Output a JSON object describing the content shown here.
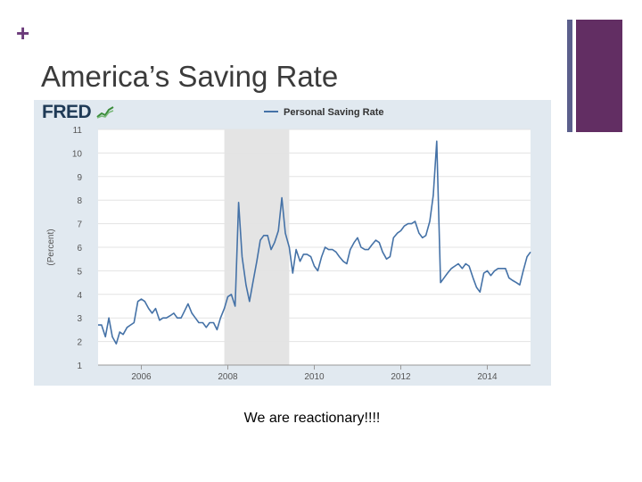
{
  "slide": {
    "plus_sign": "+",
    "title": "America’s Saving Rate",
    "caption": "We are reactionary!!!!",
    "accent_colors": {
      "thin_bar": "#5b5f8c",
      "thick_bar": "#622e63"
    }
  },
  "logo": {
    "text": "FRED"
  },
  "chart_data": {
    "type": "line",
    "title": "",
    "legend": "Personal Saving Rate",
    "legend_position": "top",
    "xlabel": "",
    "ylabel": "(Percent)",
    "ylim": [
      1,
      11
    ],
    "xlim": [
      2005.0,
      2015.0
    ],
    "yticks": [
      1,
      2,
      3,
      4,
      5,
      6,
      7,
      8,
      9,
      10,
      11
    ],
    "xticks": [
      2006,
      2008,
      2010,
      2012,
      2014
    ],
    "grid": true,
    "line_color": "#4572a7",
    "recession": {
      "start": 2007.92,
      "end": 2009.42,
      "color": "#e4e4e4"
    },
    "series": [
      {
        "name": "Personal Saving Rate",
        "x": [
          2005.0,
          2005.08,
          2005.17,
          2005.25,
          2005.33,
          2005.42,
          2005.5,
          2005.58,
          2005.67,
          2005.75,
          2005.83,
          2005.92,
          2006.0,
          2006.08,
          2006.17,
          2006.25,
          2006.33,
          2006.42,
          2006.5,
          2006.58,
          2006.67,
          2006.75,
          2006.83,
          2006.92,
          2007.0,
          2007.08,
          2007.17,
          2007.25,
          2007.33,
          2007.42,
          2007.5,
          2007.58,
          2007.67,
          2007.75,
          2007.83,
          2007.92,
          2008.0,
          2008.08,
          2008.17,
          2008.25,
          2008.33,
          2008.42,
          2008.5,
          2008.58,
          2008.67,
          2008.75,
          2008.83,
          2008.92,
          2009.0,
          2009.08,
          2009.17,
          2009.25,
          2009.33,
          2009.42,
          2009.5,
          2009.58,
          2009.67,
          2009.75,
          2009.83,
          2009.92,
          2010.0,
          2010.08,
          2010.17,
          2010.25,
          2010.33,
          2010.42,
          2010.5,
          2010.58,
          2010.67,
          2010.75,
          2010.83,
          2010.92,
          2011.0,
          2011.08,
          2011.17,
          2011.25,
          2011.33,
          2011.42,
          2011.5,
          2011.58,
          2011.67,
          2011.75,
          2011.83,
          2011.92,
          2012.0,
          2012.08,
          2012.17,
          2012.25,
          2012.33,
          2012.42,
          2012.5,
          2012.58,
          2012.67,
          2012.75,
          2012.83,
          2012.92,
          2013.0,
          2013.08,
          2013.17,
          2013.25,
          2013.33,
          2013.42,
          2013.5,
          2013.58,
          2013.67,
          2013.75,
          2013.83,
          2013.92,
          2014.0,
          2014.08,
          2014.17,
          2014.25,
          2014.33,
          2014.42,
          2014.5,
          2014.58,
          2014.67,
          2014.75,
          2014.83,
          2014.92,
          2015.0
        ],
        "values": [
          2.7,
          2.7,
          2.2,
          3.0,
          2.2,
          1.9,
          2.4,
          2.3,
          2.6,
          2.7,
          2.8,
          3.7,
          3.8,
          3.7,
          3.4,
          3.2,
          3.4,
          2.9,
          3.0,
          3.0,
          3.1,
          3.2,
          3.0,
          3.0,
          3.3,
          3.6,
          3.2,
          3.0,
          2.8,
          2.8,
          2.6,
          2.8,
          2.8,
          2.5,
          3.0,
          3.4,
          3.9,
          4.0,
          3.5,
          7.9,
          5.6,
          4.4,
          3.7,
          4.5,
          5.4,
          6.3,
          6.5,
          6.5,
          5.9,
          6.2,
          6.7,
          8.1,
          6.6,
          6.0,
          4.9,
          5.9,
          5.4,
          5.7,
          5.7,
          5.6,
          5.2,
          5.0,
          5.6,
          6.0,
          5.9,
          5.9,
          5.8,
          5.6,
          5.4,
          5.3,
          5.9,
          6.2,
          6.4,
          6.0,
          5.9,
          5.9,
          6.1,
          6.3,
          6.2,
          5.8,
          5.5,
          5.6,
          6.4,
          6.6,
          6.7,
          6.9,
          7.0,
          7.0,
          7.1,
          6.6,
          6.4,
          6.5,
          7.1,
          8.2,
          10.5,
          4.5,
          4.7,
          4.9,
          5.1,
          5.2,
          5.3,
          5.1,
          5.3,
          5.2,
          4.7,
          4.3,
          4.1,
          4.9,
          5.0,
          4.8,
          5.0,
          5.1,
          5.1,
          5.1,
          4.7,
          4.6,
          4.5,
          4.4,
          5.0,
          5.6,
          5.8
        ]
      }
    ]
  }
}
